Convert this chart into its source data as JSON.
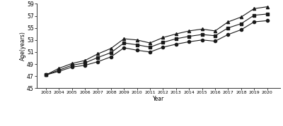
{
  "years": [
    2003,
    2004,
    2005,
    2006,
    2007,
    2008,
    2009,
    2010,
    2011,
    2012,
    2013,
    2014,
    2015,
    2016,
    2017,
    2018,
    2019,
    2020
  ],
  "total_samples": [
    47.2,
    48.0,
    48.8,
    49.2,
    50.1,
    50.9,
    52.5,
    52.2,
    51.8,
    52.6,
    53.2,
    53.6,
    53.9,
    53.7,
    55.0,
    55.7,
    57.1,
    57.3
  ],
  "main_grain": [
    47.2,
    48.3,
    49.1,
    49.6,
    50.7,
    51.6,
    53.2,
    53.0,
    52.5,
    53.4,
    54.0,
    54.5,
    54.8,
    54.5,
    56.0,
    56.8,
    58.2,
    58.5
  ],
  "non_main_grain": [
    47.2,
    47.8,
    48.5,
    48.8,
    49.4,
    50.2,
    51.7,
    51.3,
    51.0,
    51.8,
    52.3,
    52.7,
    53.0,
    52.8,
    53.9,
    54.7,
    56.0,
    56.2
  ],
  "ylabel": "Age(years)",
  "xlabel": "Year",
  "ylim": [
    45,
    59
  ],
  "yticks": [
    45,
    47,
    49,
    51,
    53,
    55,
    57,
    59
  ],
  "line_color": "#1a1a1a",
  "background_color": "#ffffff",
  "marker_total": "s",
  "marker_main": "^",
  "marker_non_main": "o"
}
